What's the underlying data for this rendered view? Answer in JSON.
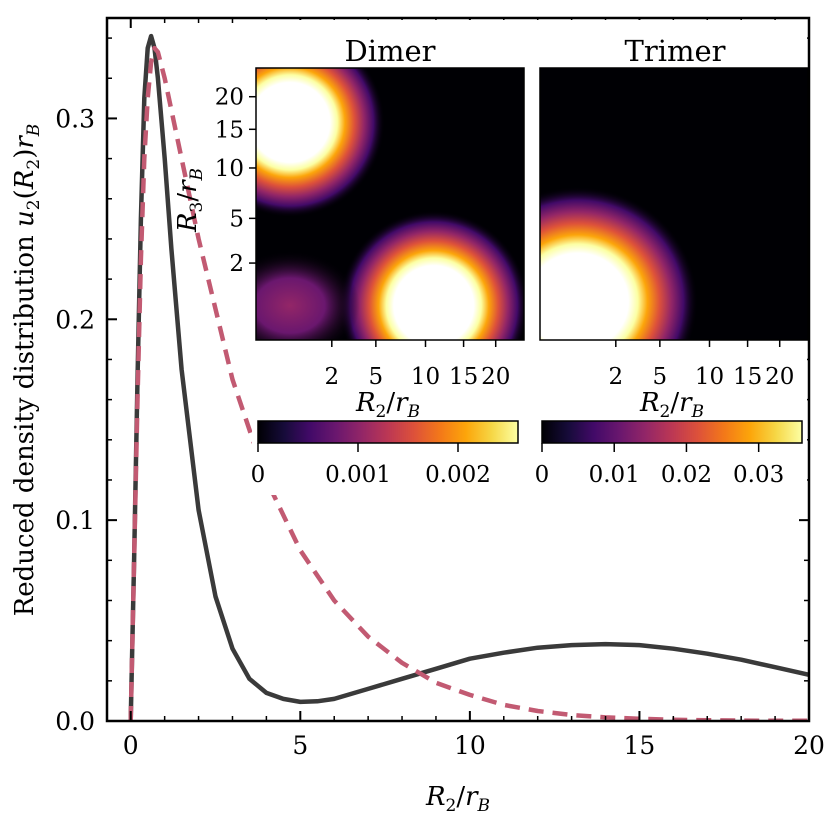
{
  "chart_data": [
    {
      "type": "line",
      "title": "",
      "xlabel": "R_2/r_B",
      "ylabel": "Reduced density distribution u_2(R_2)r_B",
      "xlim": [
        -0.7,
        20
      ],
      "ylim": [
        0,
        0.35
      ],
      "x_ticks": [
        "0",
        "5",
        "10",
        "15",
        "20"
      ],
      "y_ticks": [
        "0.0",
        "0.1",
        "0.2",
        "0.3"
      ],
      "grid": false,
      "series": [
        {
          "style": "solid",
          "color": "#3a3a3a",
          "x": [
            0,
            0.1,
            0.2,
            0.3,
            0.4,
            0.5,
            0.6,
            0.7,
            0.8,
            1.0,
            1.2,
            1.5,
            2.0,
            2.5,
            3.0,
            3.5,
            4.0,
            4.5,
            5.0,
            5.5,
            6.0,
            7.0,
            8.0,
            9.0,
            10.0,
            11.0,
            12.0,
            13.0,
            14.0,
            15.0,
            16.0,
            17.0,
            18.0,
            19.0,
            20.0
          ],
          "y": [
            0.0,
            0.08,
            0.17,
            0.25,
            0.31,
            0.335,
            0.341,
            0.335,
            0.32,
            0.28,
            0.235,
            0.175,
            0.105,
            0.062,
            0.036,
            0.021,
            0.014,
            0.011,
            0.0095,
            0.0098,
            0.011,
            0.016,
            0.021,
            0.026,
            0.031,
            0.034,
            0.0365,
            0.0378,
            0.0383,
            0.0378,
            0.036,
            0.0335,
            0.0305,
            0.0268,
            0.023
          ]
        },
        {
          "style": "dashed",
          "color": "#c25a72",
          "x": [
            0,
            0.1,
            0.2,
            0.3,
            0.4,
            0.5,
            0.6,
            0.7,
            0.8,
            1.0,
            1.5,
            2.0,
            3.0,
            4.0,
            5.0,
            6.0,
            7.0,
            8.0,
            9.0,
            10.0,
            11.0,
            12.0,
            13.0,
            14.0,
            15.0,
            16.0,
            17.0,
            18.0,
            19.0,
            20.0
          ],
          "y": [
            0.0,
            0.08,
            0.16,
            0.23,
            0.28,
            0.31,
            0.328,
            0.335,
            0.333,
            0.32,
            0.28,
            0.24,
            0.17,
            0.12,
            0.085,
            0.06,
            0.042,
            0.029,
            0.019,
            0.013,
            0.008,
            0.005,
            0.003,
            0.0018,
            0.0011,
            0.0006,
            0.0004,
            0.0002,
            0.0001,
            0.0001
          ]
        }
      ]
    },
    {
      "type": "heatmap",
      "title": "Dimer",
      "xlabel": "R_2/r_B",
      "ylabel": "R_3/r_B",
      "x_ticks": [
        "2",
        "5",
        "10",
        "15",
        "20"
      ],
      "y_ticks": [
        "2",
        "5",
        "10",
        "15",
        "20"
      ],
      "colormap": "inferno",
      "colorbar_ticks": [
        "0",
        "0.001",
        "0.002"
      ],
      "colorbar_range": [
        0,
        0.0026
      ],
      "blobs": [
        {
          "r2": 0.4,
          "r3": 16,
          "peak": 0.0026
        },
        {
          "r2": 11,
          "r3": 0.4,
          "peak": 0.0026
        },
        {
          "r2": 0.4,
          "r3": 0.4,
          "peak": 0.0008
        }
      ]
    },
    {
      "type": "heatmap",
      "title": "Trimer",
      "xlabel": "R_2/r_B",
      "ylabel": "",
      "x_ticks": [
        "2",
        "5",
        "10",
        "15",
        "20"
      ],
      "y_ticks": [],
      "colormap": "inferno",
      "colorbar_ticks": [
        "0",
        "0.01",
        "0.02",
        "0.03"
      ],
      "colorbar_range": [
        0,
        0.036
      ],
      "blobs": [
        {
          "r2": 0.5,
          "r3": 0.5,
          "peak": 0.036
        }
      ]
    }
  ],
  "labels": {
    "main_xlabel_base": "R",
    "main_xlabel_sub": "2",
    "main_xlabel_div": "/",
    "main_xlabel_var": "r",
    "main_xlabel_varsub": "B",
    "main_ylabel_text": "Reduced density distribution ",
    "main_ylabel_u": "u",
    "main_ylabel_usub": "2",
    "main_ylabel_paren_open": "(",
    "main_ylabel_R": "R",
    "main_ylabel_Rsub": "2",
    "main_ylabel_paren_close": ")",
    "main_ylabel_r": "r",
    "main_ylabel_rsub": "B",
    "inset_y_R": "R",
    "inset_y_sub": "3",
    "inset_y_div": "/",
    "inset_y_r": "r",
    "inset_y_rsub": "B",
    "inset_x_R": "R",
    "inset_x_sub": "2",
    "inset_x_div": "/",
    "inset_x_r": "r",
    "inset_x_rsub": "B"
  }
}
